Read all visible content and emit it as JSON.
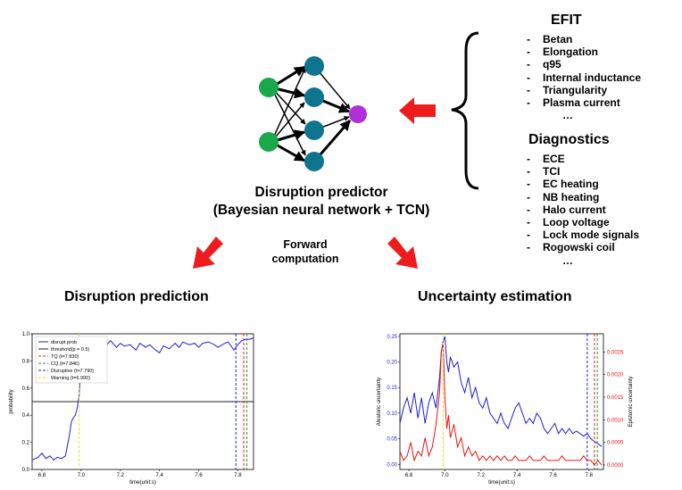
{
  "predictor": {
    "title_line1": "Disruption predictor",
    "title_line2": "(Bayesian neural network + TCN)"
  },
  "forward": {
    "line1": "Forward",
    "line2": "computation"
  },
  "efit": {
    "heading": "EFIT",
    "items": [
      "Betan",
      "Elongation",
      "q95",
      "Internal inductance",
      "Triangularity",
      "Plasma current"
    ],
    "ellipsis": "…"
  },
  "diagnostics": {
    "heading": "Diagnostics",
    "items": [
      "ECE",
      "TCI",
      "EC heating",
      "NB heating",
      "Halo current",
      "Loop voltage",
      "Lock mode signals",
      "Rogowski coil"
    ],
    "ellipsis": "…"
  },
  "sections": {
    "left_title": "Disruption prediction",
    "right_title": "Uncertainty estimation"
  },
  "colors": {
    "input_node": "#1aa84a",
    "hidden_node": "#0e7490",
    "output_node": "#b02fd9",
    "arrow": "#ee1c1c"
  },
  "chart_data": [
    {
      "type": "line",
      "xlabel": "time(unit:s)",
      "ylabel": "probability",
      "xlim": [
        6.75,
        7.88
      ],
      "ylim": [
        0.0,
        1.0
      ],
      "xticks": [
        "6.8",
        "7.0",
        "7.2",
        "7.4",
        "7.6",
        "7.8"
      ],
      "yticks": [
        "0.0",
        "0.2",
        "0.4",
        "0.6",
        "0.8",
        "1.0"
      ],
      "legend_position": "top-left",
      "series": [
        {
          "name": "disrupt prob",
          "color": "#1f1fd6",
          "x": [
            6.75,
            6.78,
            6.8,
            6.82,
            6.84,
            6.86,
            6.88,
            6.9,
            6.92,
            6.94,
            6.95,
            6.96,
            6.97,
            6.98,
            6.99,
            7.0,
            7.01,
            7.02,
            7.04,
            7.06,
            7.08,
            7.1,
            7.12,
            7.15,
            7.18,
            7.2,
            7.22,
            7.25,
            7.28,
            7.3,
            7.33,
            7.35,
            7.38,
            7.4,
            7.42,
            7.45,
            7.48,
            7.5,
            7.52,
            7.55,
            7.58,
            7.6,
            7.62,
            7.65,
            7.68,
            7.7,
            7.72,
            7.75,
            7.78,
            7.8,
            7.82,
            7.84,
            7.86,
            7.88
          ],
          "y": [
            0.07,
            0.09,
            0.12,
            0.08,
            0.1,
            0.07,
            0.09,
            0.08,
            0.1,
            0.25,
            0.35,
            0.38,
            0.4,
            0.45,
            0.55,
            0.8,
            0.9,
            0.92,
            0.88,
            0.93,
            0.9,
            0.94,
            0.9,
            0.95,
            0.9,
            0.93,
            0.91,
            0.92,
            0.88,
            0.93,
            0.9,
            0.92,
            0.88,
            0.86,
            0.91,
            0.89,
            0.93,
            0.9,
            0.94,
            0.92,
            0.93,
            0.9,
            0.93,
            0.94,
            0.92,
            0.9,
            0.92,
            0.94,
            0.88,
            0.92,
            0.95,
            0.96,
            0.96,
            0.97
          ]
        }
      ],
      "threshold": {
        "name": "threshold(p = 0.5)",
        "value": 0.5,
        "color": "#222222"
      },
      "vlines": [
        {
          "name": "TQ (t=7.830)",
          "x": 7.83,
          "color": "#e02020"
        },
        {
          "name": "CQ (t=7.846)",
          "x": 7.846,
          "color": "#20a020"
        },
        {
          "name": "Disruptive (t=7.790)",
          "x": 7.79,
          "color": "#2020e0"
        },
        {
          "name": "Warning (t=6.990)",
          "x": 6.99,
          "color": "#e8e020"
        }
      ]
    },
    {
      "type": "line",
      "xlabel": "time(unit:s)",
      "ylabel": "Aleatoric uncertainty",
      "ylabel_right": "Epistemic uncertainty",
      "xlim": [
        6.75,
        7.88
      ],
      "ylim": [
        -0.01,
        0.255
      ],
      "ylim_right": [
        -0.0001,
        0.0029
      ],
      "xticks": [
        "6.8",
        "7.0",
        "7.2",
        "7.4",
        "7.6",
        "7.8"
      ],
      "yticks": [
        "0.00",
        "0.05",
        "0.10",
        "0.15",
        "0.20",
        "0.25"
      ],
      "yticks_right": [
        "0.0000",
        "0.0005",
        "0.0010",
        "0.0015",
        "0.0020",
        "0.0025"
      ],
      "series": [
        {
          "axis": "left",
          "color": "#1f1fd6",
          "x": [
            6.75,
            6.77,
            6.79,
            6.81,
            6.83,
            6.85,
            6.87,
            6.89,
            6.91,
            6.93,
            6.95,
            6.97,
            6.98,
            6.99,
            7.0,
            7.01,
            7.02,
            7.03,
            7.05,
            7.07,
            7.09,
            7.11,
            7.13,
            7.15,
            7.17,
            7.19,
            7.21,
            7.23,
            7.25,
            7.27,
            7.29,
            7.31,
            7.33,
            7.35,
            7.37,
            7.39,
            7.41,
            7.43,
            7.45,
            7.47,
            7.49,
            7.51,
            7.53,
            7.55,
            7.57,
            7.59,
            7.61,
            7.63,
            7.65,
            7.67,
            7.69,
            7.71,
            7.73,
            7.75,
            7.77,
            7.79,
            7.81,
            7.83,
            7.85,
            7.87
          ],
          "y": [
            0.08,
            0.11,
            0.13,
            0.1,
            0.14,
            0.09,
            0.13,
            0.08,
            0.12,
            0.14,
            0.11,
            0.17,
            0.22,
            0.24,
            0.25,
            0.2,
            0.18,
            0.21,
            0.19,
            0.2,
            0.16,
            0.14,
            0.17,
            0.13,
            0.15,
            0.12,
            0.11,
            0.13,
            0.1,
            0.09,
            0.08,
            0.1,
            0.08,
            0.07,
            0.09,
            0.11,
            0.12,
            0.1,
            0.08,
            0.09,
            0.08,
            0.1,
            0.09,
            0.07,
            0.06,
            0.07,
            0.08,
            0.06,
            0.07,
            0.06,
            0.07,
            0.06,
            0.065,
            0.06,
            0.055,
            0.06,
            0.05,
            0.045,
            0.04,
            0.035
          ]
        },
        {
          "axis": "right",
          "color": "#ee1111",
          "x": [
            6.75,
            6.77,
            6.79,
            6.81,
            6.83,
            6.85,
            6.87,
            6.89,
            6.91,
            6.93,
            6.95,
            6.97,
            6.98,
            6.99,
            7.0,
            7.01,
            7.02,
            7.03,
            7.05,
            7.07,
            7.09,
            7.11,
            7.13,
            7.15,
            7.17,
            7.19,
            7.21,
            7.23,
            7.25,
            7.27,
            7.29,
            7.31,
            7.33,
            7.35,
            7.37,
            7.39,
            7.41,
            7.43,
            7.45,
            7.47,
            7.49,
            7.51,
            7.53,
            7.55,
            7.57,
            7.59,
            7.61,
            7.63,
            7.65,
            7.67,
            7.69,
            7.71,
            7.73,
            7.75,
            7.77,
            7.79,
            7.81,
            7.83,
            7.85,
            7.87
          ],
          "y": [
            0.0003,
            0.0001,
            0.0002,
            0.0005,
            0.0001,
            0.0003,
            0.0002,
            0.0006,
            0.0002,
            0.0004,
            0.0009,
            0.0016,
            0.0025,
            0.0027,
            0.0015,
            0.0008,
            0.0011,
            0.0006,
            0.0009,
            0.0004,
            0.0006,
            0.0002,
            0.0004,
            0.0002,
            0.0003,
            0.0001,
            0.0002,
            0.0001,
            0.0002,
            0.0001,
            0.0002,
            0.0001,
            0.0002,
            0.0001,
            0.0001,
            0.0002,
            0.0001,
            0.0001,
            0.0001,
            0.0002,
            0.0001,
            0.0001,
            0.0001,
            0.0002,
            0.0001,
            0.0001,
            0.0001,
            0.0001,
            0.0002,
            0.0001,
            0.0001,
            0.0001,
            0.0001,
            0.0001,
            0.0002,
            0.0001,
            0.0001,
            0.0,
            0.0001,
            0.0
          ]
        }
      ],
      "vlines": [
        {
          "x": 7.79,
          "color": "#2020e0"
        },
        {
          "x": 7.83,
          "color": "#e02020"
        },
        {
          "x": 7.846,
          "color": "#20a020"
        },
        {
          "x": 6.99,
          "color": "#e8e020"
        }
      ]
    }
  ]
}
